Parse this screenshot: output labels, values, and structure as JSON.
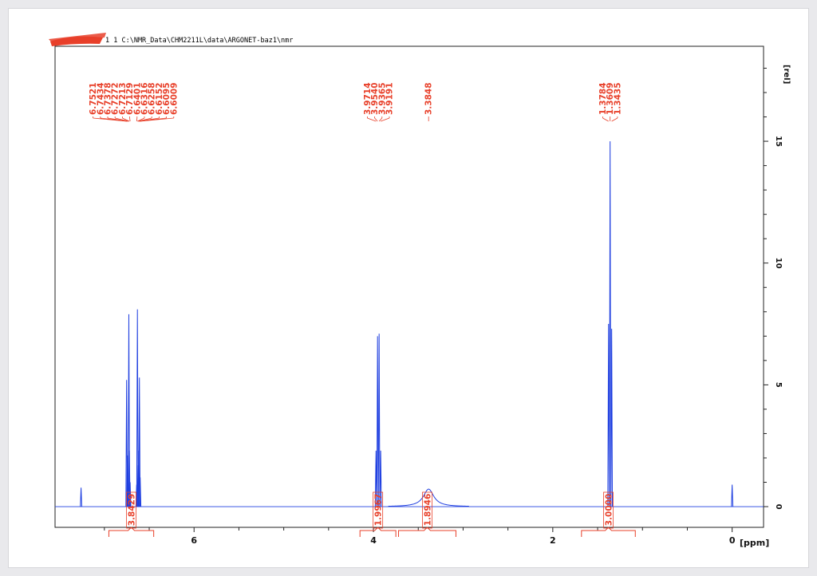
{
  "header": {
    "dataset_label": "1  1  C:\\NMR_Data\\CHM2211L\\data\\ARGONET-baz1\\nmr"
  },
  "colors": {
    "spectrum": "#1f3fe0",
    "annotation": "#e8402a",
    "axis": "#222222",
    "redaction": "#e8402a"
  },
  "chart_data": {
    "type": "line",
    "title": "",
    "xlabel": "[ppm]",
    "ylabel": "[rel]",
    "x_reversed": true,
    "xlim": [
      -0.35,
      7.55
    ],
    "ylim": [
      -0.85,
      18.9
    ],
    "x_ticks": [
      6,
      4,
      2,
      0
    ],
    "y_ticks": [
      0,
      5,
      10,
      15
    ],
    "series": [
      {
        "peaks": [
          {
            "ppm": 7.26,
            "h": 0.78
          },
          {
            "ppm": 6.7521,
            "h": 5.2
          },
          {
            "ppm": 6.7434,
            "h": 2.1
          },
          {
            "ppm": 6.7378,
            "h": 1.4
          },
          {
            "ppm": 6.7272,
            "h": 7.9
          },
          {
            "ppm": 6.7213,
            "h": 2.3
          },
          {
            "ppm": 6.7129,
            "h": 1.0
          },
          {
            "ppm": 6.6401,
            "h": 0.9
          },
          {
            "ppm": 6.6316,
            "h": 8.1
          },
          {
            "ppm": 6.6258,
            "h": 1.7
          },
          {
            "ppm": 6.6152,
            "h": 2.3
          },
          {
            "ppm": 6.6095,
            "h": 5.3
          },
          {
            "ppm": 6.6009,
            "h": 1.2
          },
          {
            "ppm": 3.9714,
            "h": 2.3
          },
          {
            "ppm": 3.954,
            "h": 7.0
          },
          {
            "ppm": 3.9365,
            "h": 7.1
          },
          {
            "ppm": 3.9191,
            "h": 2.3
          },
          {
            "ppm": 1.3784,
            "h": 7.5
          },
          {
            "ppm": 1.3609,
            "h": 15.0
          },
          {
            "ppm": 1.3435,
            "h": 7.3
          },
          {
            "ppm": 0.0,
            "h": 0.9
          }
        ],
        "broad_peaks": [
          {
            "ppm": 3.3848,
            "h": 0.72,
            "width": 0.07
          }
        ]
      }
    ],
    "peak_labels": [
      {
        "group": "aromatic",
        "values": [
          "6.7521",
          "6.7434",
          "6.7378",
          "6.7272",
          "6.7213",
          "6.7129",
          "6.6401",
          "6.6316",
          "6.6258",
          "6.6152",
          "6.6095",
          "6.6009"
        ],
        "center_ppm": 6.6765
      },
      {
        "group": "methylene",
        "values": [
          "3.9714",
          "3.9540",
          "3.9365",
          "3.9191"
        ],
        "center_ppm": 3.9452
      },
      {
        "group": "broad",
        "values": [
          "3.3848"
        ],
        "center_ppm": 3.3848
      },
      {
        "group": "methyl",
        "values": [
          "1.3784",
          "1.3609",
          "1.3435"
        ],
        "center_ppm": 1.3609
      }
    ],
    "integrals": [
      {
        "value": "3.8429",
        "from_ppm": 6.95,
        "to_ppm": 6.45
      },
      {
        "value": "1.9967",
        "from_ppm": 4.15,
        "to_ppm": 3.75
      },
      {
        "value": "1.8946",
        "from_ppm": 3.72,
        "to_ppm": 3.08
      },
      {
        "value": "3.0000",
        "from_ppm": 1.68,
        "to_ppm": 1.08
      }
    ]
  }
}
